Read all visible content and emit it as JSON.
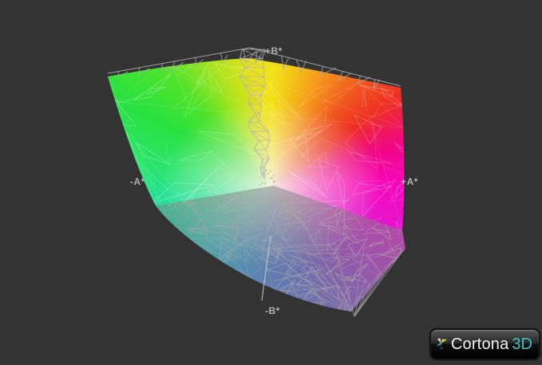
{
  "viewport": {
    "background": "#333333"
  },
  "axis_labels": {
    "top": "+B*",
    "right": "+A*",
    "left": "-A*",
    "bottom": "-B*",
    "color": "#b2b2b2"
  },
  "gamut": {
    "center_glow": "rgba(248,245,228,0.95)",
    "shadow_fill": "rgba(128,128,128,0.5)",
    "mesh_light": "rgba(255,255,255,0.2)",
    "mesh_gray": "#a8a8a8",
    "conic_stops": [
      [
        0,
        "#f2e318"
      ],
      [
        12,
        "#f4c018"
      ],
      [
        25,
        "#f6951c"
      ],
      [
        42,
        "#ef5520"
      ],
      [
        55,
        "#ee2f24"
      ],
      [
        72,
        "#f00784"
      ],
      [
        90,
        "#f707bc"
      ],
      [
        112,
        "#e317d0"
      ],
      [
        130,
        "#b32ad8"
      ],
      [
        148,
        "#7e4cd4"
      ],
      [
        163,
        "#5567dc"
      ],
      [
        180,
        "#3f79e0"
      ],
      [
        200,
        "#2f9ce2"
      ],
      [
        222,
        "#1fc0d4"
      ],
      [
        245,
        "#1cd8b4"
      ],
      [
        262,
        "#22e096"
      ],
      [
        278,
        "#2ae472"
      ],
      [
        300,
        "#2ae140"
      ],
      [
        318,
        "#52e22a"
      ],
      [
        334,
        "#a8e41e"
      ],
      [
        350,
        "#e8e019"
      ],
      [
        360,
        "#f2e318"
      ]
    ]
  },
  "logo": {
    "text": "Cortona",
    "suffix": "3D",
    "suffix_color": "#41c2c6"
  }
}
